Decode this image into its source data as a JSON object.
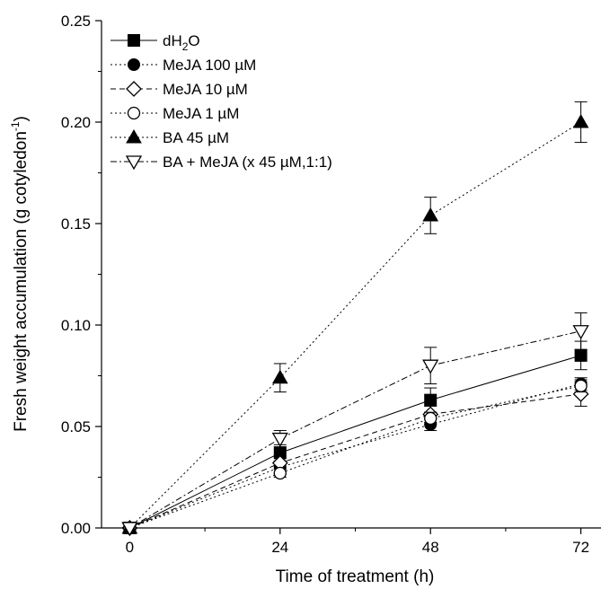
{
  "chart_data": {
    "type": "line",
    "xlabel": "Time of treatment (h)",
    "ylabel": "Fresh weight accumulation (g cotyledon",
    "ylabel_sup": "-1",
    "ylabel_close": ")",
    "x": [
      0,
      24,
      48,
      72
    ],
    "x_ticks": [
      "0",
      "24",
      "48",
      "72"
    ],
    "xlim": [
      -4.5,
      76.5
    ],
    "ylim": [
      0,
      0.25
    ],
    "y_ticks": [
      "0.00",
      "0.05",
      "0.10",
      "0.15",
      "0.20",
      "0.25"
    ],
    "grid": false,
    "legend_position": "top-left",
    "series": [
      {
        "name": "dH",
        "name_sub": "2",
        "name_tail": "O",
        "marker": "square-filled",
        "dash": "none",
        "values": [
          0,
          0.037,
          0.063,
          0.085
        ],
        "errors": [
          0,
          0.004,
          0.006,
          0.007
        ]
      },
      {
        "name": "MeJA 100 µM",
        "marker": "circle-filled",
        "dash": "dot",
        "values": [
          0,
          0.03,
          0.051,
          0.071
        ],
        "errors": [
          0,
          0.003,
          0.003,
          0.003
        ]
      },
      {
        "name": "MeJA 10 µM",
        "marker": "diamond-open",
        "dash": "dash",
        "values": [
          0,
          0.032,
          0.056,
          0.066
        ],
        "errors": [
          0,
          0.003,
          0.004,
          0.006
        ]
      },
      {
        "name": "MeJA 1 µM",
        "marker": "circle-open",
        "dash": "dot",
        "values": [
          0,
          0.027,
          0.054,
          0.07
        ],
        "errors": [
          0,
          0.002,
          0.003,
          0.003
        ]
      },
      {
        "name": "BA 45 µM",
        "marker": "triangle-up-filled",
        "dash": "dot",
        "values": [
          0,
          0.074,
          0.154,
          0.2
        ],
        "errors": [
          0,
          0.007,
          0.009,
          0.01
        ]
      },
      {
        "name": "BA + MeJA (x 45 µM,1:1)",
        "marker": "triangle-down-open",
        "dash": "dashdot",
        "values": [
          0,
          0.044,
          0.08,
          0.097
        ],
        "errors": [
          0,
          0.004,
          0.009,
          0.009
        ]
      }
    ]
  }
}
